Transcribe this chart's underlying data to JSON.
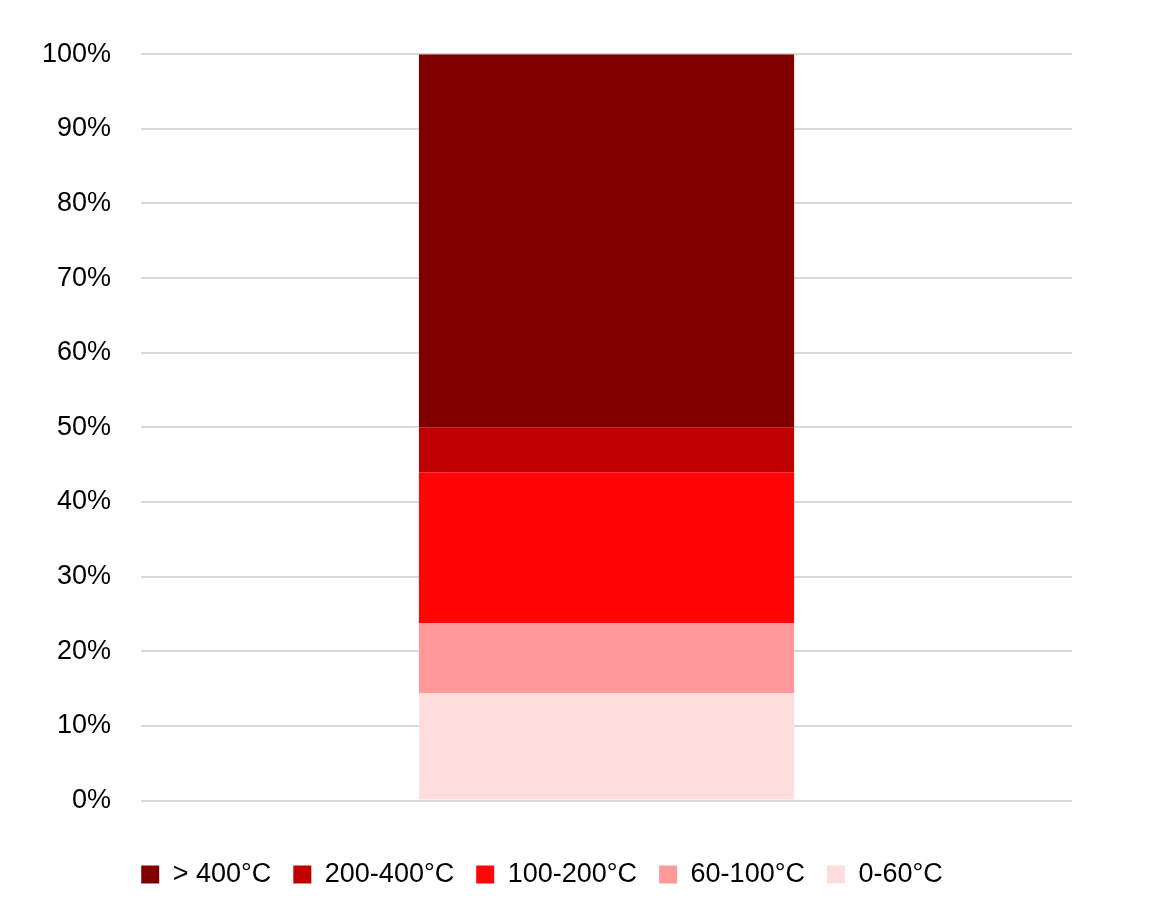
{
  "chart_data": {
    "type": "bar",
    "stacked": true,
    "categories": [
      null
    ],
    "series": [
      {
        "name": "0-60°C",
        "color": "#ffdddd",
        "values": [
          14.4
        ]
      },
      {
        "name": "60-100°C",
        "color": "#ff9999",
        "values": [
          9.4
        ]
      },
      {
        "name": "100-200°C",
        "color": "#ff0505",
        "values": [
          20.2
        ]
      },
      {
        "name": "200-400°C",
        "color": "#c00000",
        "values": [
          6.0
        ]
      },
      {
        "name": "> 400°C",
        "color": "#800000",
        "values": [
          50.0
        ]
      }
    ],
    "ylim": [
      0,
      100
    ],
    "yticks": [
      {
        "value": 0,
        "label": "0%"
      },
      {
        "value": 10,
        "label": "10%"
      },
      {
        "value": 20,
        "label": "20%"
      },
      {
        "value": 30,
        "label": "30%"
      },
      {
        "value": 40,
        "label": "40%"
      },
      {
        "value": 50,
        "label": "50%"
      },
      {
        "value": 60,
        "label": "60%"
      },
      {
        "value": 70,
        "label": "70%"
      },
      {
        "value": 80,
        "label": "80%"
      },
      {
        "value": 90,
        "label": "90%"
      },
      {
        "value": 100,
        "label": "100%"
      }
    ],
    "grid": "y",
    "legend": "bottom"
  }
}
